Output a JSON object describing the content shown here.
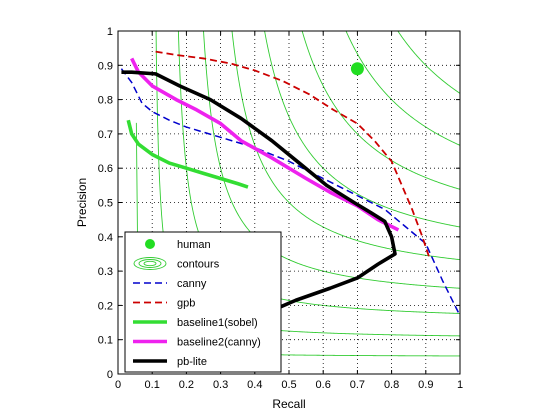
{
  "chart_data": {
    "type": "line",
    "title": "",
    "xlabel": "Recall",
    "ylabel": "Precision",
    "xlim": [
      0,
      1
    ],
    "ylim": [
      0,
      1
    ],
    "grid": true,
    "grid_style": "dotted",
    "legend_position": "bottom-left",
    "xticks": [
      "0",
      "0.1",
      "0.2",
      "0.3",
      "0.4",
      "0.5",
      "0.6",
      "0.7",
      "0.8",
      "0.9",
      "1"
    ],
    "yticks": [
      "0",
      "0.1",
      "0.2",
      "0.3",
      "0.4",
      "0.5",
      "0.6",
      "0.7",
      "0.8",
      "0.9",
      "1"
    ],
    "contour_levels": [
      0.1,
      0.2,
      0.3,
      0.4,
      0.5,
      0.6,
      0.7,
      0.8,
      0.9
    ],
    "contour_color": "#33cc33",
    "series": [
      {
        "name": "human",
        "kind": "marker",
        "color": "#22dd22",
        "points": [
          [
            0.7,
            0.89
          ]
        ]
      },
      {
        "name": "contours",
        "kind": "contour-legend",
        "color": "#33cc33",
        "points": []
      },
      {
        "name": "canny",
        "kind": "line",
        "style": "dashed",
        "color": "#0000cc",
        "points": [
          [
            0.01,
            0.89
          ],
          [
            0.04,
            0.85
          ],
          [
            0.07,
            0.79
          ],
          [
            0.1,
            0.765
          ],
          [
            0.15,
            0.74
          ],
          [
            0.2,
            0.72
          ],
          [
            0.3,
            0.69
          ],
          [
            0.4,
            0.66
          ],
          [
            0.5,
            0.62
          ],
          [
            0.6,
            0.57
          ],
          [
            0.7,
            0.52
          ],
          [
            0.78,
            0.48
          ],
          [
            0.84,
            0.43
          ],
          [
            0.9,
            0.38
          ],
          [
            0.95,
            0.27
          ],
          [
            1.0,
            0.17
          ]
        ]
      },
      {
        "name": "gpb",
        "kind": "line",
        "style": "dashed",
        "color": "#cc0000",
        "points": [
          [
            0.11,
            0.94
          ],
          [
            0.17,
            0.93
          ],
          [
            0.25,
            0.92
          ],
          [
            0.33,
            0.905
          ],
          [
            0.4,
            0.885
          ],
          [
            0.48,
            0.855
          ],
          [
            0.56,
            0.815
          ],
          [
            0.63,
            0.77
          ],
          [
            0.7,
            0.73
          ],
          [
            0.75,
            0.68
          ],
          [
            0.8,
            0.62
          ],
          [
            0.83,
            0.55
          ],
          [
            0.86,
            0.48
          ],
          [
            0.89,
            0.4
          ],
          [
            0.91,
            0.34
          ]
        ]
      },
      {
        "name": "baseline1(sobel)",
        "kind": "line",
        "style": "solid",
        "color": "#33dd33",
        "points": [
          [
            0.03,
            0.74
          ],
          [
            0.04,
            0.7
          ],
          [
            0.06,
            0.67
          ],
          [
            0.1,
            0.64
          ],
          [
            0.15,
            0.615
          ],
          [
            0.2,
            0.6
          ],
          [
            0.25,
            0.585
          ],
          [
            0.3,
            0.57
          ],
          [
            0.35,
            0.555
          ],
          [
            0.38,
            0.545
          ]
        ]
      },
      {
        "name": "baseline2(canny)",
        "kind": "line",
        "style": "solid",
        "color": "#ee22ee",
        "points": [
          [
            0.04,
            0.92
          ],
          [
            0.06,
            0.88
          ],
          [
            0.1,
            0.84
          ],
          [
            0.17,
            0.8
          ],
          [
            0.23,
            0.77
          ],
          [
            0.3,
            0.73
          ],
          [
            0.36,
            0.68
          ],
          [
            0.45,
            0.63
          ],
          [
            0.55,
            0.57
          ],
          [
            0.62,
            0.53
          ],
          [
            0.7,
            0.49
          ],
          [
            0.76,
            0.45
          ],
          [
            0.82,
            0.42
          ]
        ]
      },
      {
        "name": "pb-lite",
        "kind": "line",
        "style": "solid",
        "color": "#000000",
        "points": [
          [
            0.01,
            0.88
          ],
          [
            0.04,
            0.88
          ],
          [
            0.11,
            0.875
          ],
          [
            0.18,
            0.84
          ],
          [
            0.27,
            0.8
          ],
          [
            0.36,
            0.745
          ],
          [
            0.45,
            0.68
          ],
          [
            0.53,
            0.615
          ],
          [
            0.61,
            0.55
          ],
          [
            0.69,
            0.5
          ],
          [
            0.74,
            0.47
          ],
          [
            0.78,
            0.445
          ],
          [
            0.8,
            0.4
          ],
          [
            0.81,
            0.35
          ],
          [
            0.76,
            0.32
          ],
          [
            0.7,
            0.28
          ],
          [
            0.62,
            0.25
          ],
          [
            0.52,
            0.215
          ],
          [
            0.45,
            0.185
          ],
          [
            0.38,
            0.16
          ]
        ]
      }
    ]
  }
}
